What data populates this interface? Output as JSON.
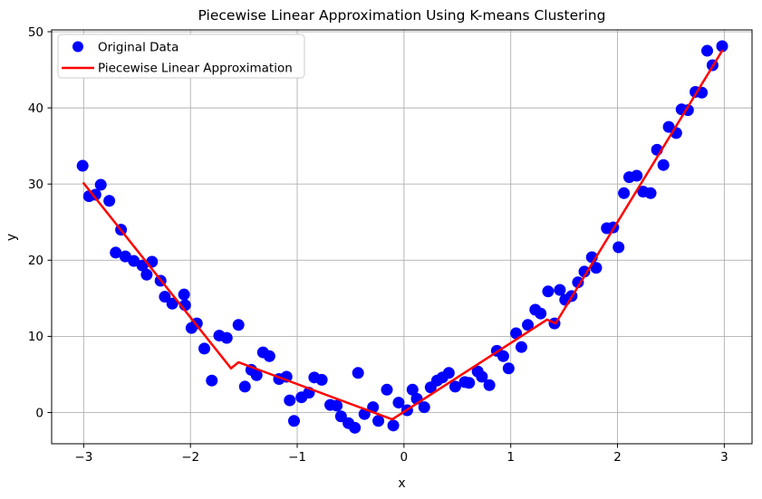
{
  "figure": {
    "background": "#ffffff",
    "spine_color": "#000000",
    "grid_color": "#b0b0b0",
    "legend_border_color": "#cccccc"
  },
  "chart_data": {
    "type": "scatter",
    "title": "Piecewise Linear Approximation Using K-means Clustering",
    "xlabel": "x",
    "ylabel": "y",
    "xlim": [
      -3.3,
      3.26
    ],
    "ylim": [
      -4.1,
      50.24
    ],
    "grid": true,
    "legend_position": "upper left",
    "xticks": {
      "values": [
        -3,
        -2,
        -1,
        0,
        1,
        2,
        3
      ],
      "labels": [
        "−3",
        "−2",
        "−1",
        "0",
        "1",
        "2",
        "3"
      ]
    },
    "yticks": {
      "values": [
        0,
        10,
        20,
        30,
        40,
        50
      ],
      "labels": [
        "0",
        "10",
        "20",
        "30",
        "40",
        "50"
      ]
    },
    "series": [
      {
        "name": "Original Data",
        "type": "scatter",
        "color": "#0000ff",
        "marker": "circle",
        "marker_radius": 6.5,
        "points": [
          [
            -3.01,
            32.4
          ],
          [
            -2.95,
            28.4
          ],
          [
            -2.89,
            28.6
          ],
          [
            -2.84,
            29.9
          ],
          [
            -2.76,
            27.8
          ],
          [
            -2.7,
            21.0
          ],
          [
            -2.65,
            24.0
          ],
          [
            -2.61,
            20.5
          ],
          [
            -2.53,
            19.9
          ],
          [
            -2.45,
            19.3
          ],
          [
            -2.41,
            18.1
          ],
          [
            -2.36,
            19.8
          ],
          [
            -2.28,
            17.3
          ],
          [
            -2.24,
            15.2
          ],
          [
            -2.17,
            14.3
          ],
          [
            -2.06,
            15.5
          ],
          [
            -2.05,
            14.1
          ],
          [
            -1.99,
            11.1
          ],
          [
            -1.94,
            11.7
          ],
          [
            -1.87,
            8.4
          ],
          [
            -1.8,
            4.2
          ],
          [
            -1.73,
            10.1
          ],
          [
            -1.66,
            9.8
          ],
          [
            -1.55,
            11.5
          ],
          [
            -1.49,
            3.4
          ],
          [
            -1.43,
            5.6
          ],
          [
            -1.38,
            4.9
          ],
          [
            -1.32,
            7.9
          ],
          [
            -1.26,
            7.4
          ],
          [
            -1.17,
            4.4
          ],
          [
            -1.1,
            4.7
          ],
          [
            -1.07,
            1.6
          ],
          [
            -1.03,
            -1.1
          ],
          [
            -0.96,
            2.0
          ],
          [
            -0.89,
            2.6
          ],
          [
            -0.84,
            4.6
          ],
          [
            -0.77,
            4.3
          ],
          [
            -0.69,
            1.0
          ],
          [
            -0.63,
            0.9
          ],
          [
            -0.59,
            -0.5
          ],
          [
            -0.52,
            -1.4
          ],
          [
            -0.46,
            -2.0
          ],
          [
            -0.43,
            5.2
          ],
          [
            -0.37,
            -0.2
          ],
          [
            -0.29,
            0.7
          ],
          [
            -0.24,
            -1.1
          ],
          [
            -0.16,
            3.0
          ],
          [
            -0.1,
            -1.7
          ],
          [
            -0.05,
            1.3
          ],
          [
            0.03,
            0.3
          ],
          [
            0.08,
            3.0
          ],
          [
            0.12,
            1.8
          ],
          [
            0.19,
            0.7
          ],
          [
            0.25,
            3.3
          ],
          [
            0.31,
            4.2
          ],
          [
            0.36,
            4.6
          ],
          [
            0.42,
            5.2
          ],
          [
            0.48,
            3.4
          ],
          [
            0.57,
            4.0
          ],
          [
            0.61,
            3.9
          ],
          [
            0.69,
            5.4
          ],
          [
            0.73,
            4.7
          ],
          [
            0.8,
            3.6
          ],
          [
            0.87,
            8.1
          ],
          [
            0.93,
            7.4
          ],
          [
            0.98,
            5.8
          ],
          [
            1.05,
            10.4
          ],
          [
            1.1,
            8.6
          ],
          [
            1.16,
            11.5
          ],
          [
            1.23,
            13.5
          ],
          [
            1.28,
            13.0
          ],
          [
            1.35,
            15.9
          ],
          [
            1.41,
            11.7
          ],
          [
            1.46,
            16.1
          ],
          [
            1.51,
            14.8
          ],
          [
            1.57,
            15.3
          ],
          [
            1.63,
            17.1
          ],
          [
            1.69,
            18.5
          ],
          [
            1.76,
            20.4
          ],
          [
            1.8,
            19.0
          ],
          [
            1.9,
            24.2
          ],
          [
            1.96,
            24.3
          ],
          [
            2.01,
            21.7
          ],
          [
            2.06,
            28.8
          ],
          [
            2.11,
            30.9
          ],
          [
            2.18,
            31.1
          ],
          [
            2.24,
            29.0
          ],
          [
            2.31,
            28.8
          ],
          [
            2.37,
            34.5
          ],
          [
            2.43,
            32.5
          ],
          [
            2.48,
            37.5
          ],
          [
            2.55,
            36.7
          ],
          [
            2.6,
            39.8
          ],
          [
            2.66,
            39.7
          ],
          [
            2.73,
            42.1
          ],
          [
            2.79,
            42.0
          ],
          [
            2.84,
            47.5
          ],
          [
            2.89,
            45.6
          ],
          [
            2.98,
            48.1
          ]
        ]
      },
      {
        "name": "Piecewise Linear Approximation",
        "type": "line",
        "color": "#ff0000",
        "line_width": 2.5,
        "points": [
          [
            -3.0,
            30.1
          ],
          [
            -1.62,
            5.8
          ],
          [
            -1.55,
            6.6
          ],
          [
            -0.11,
            -0.9
          ],
          [
            1.34,
            12.2
          ],
          [
            1.42,
            11.7
          ],
          [
            2.98,
            47.5
          ]
        ]
      }
    ]
  }
}
